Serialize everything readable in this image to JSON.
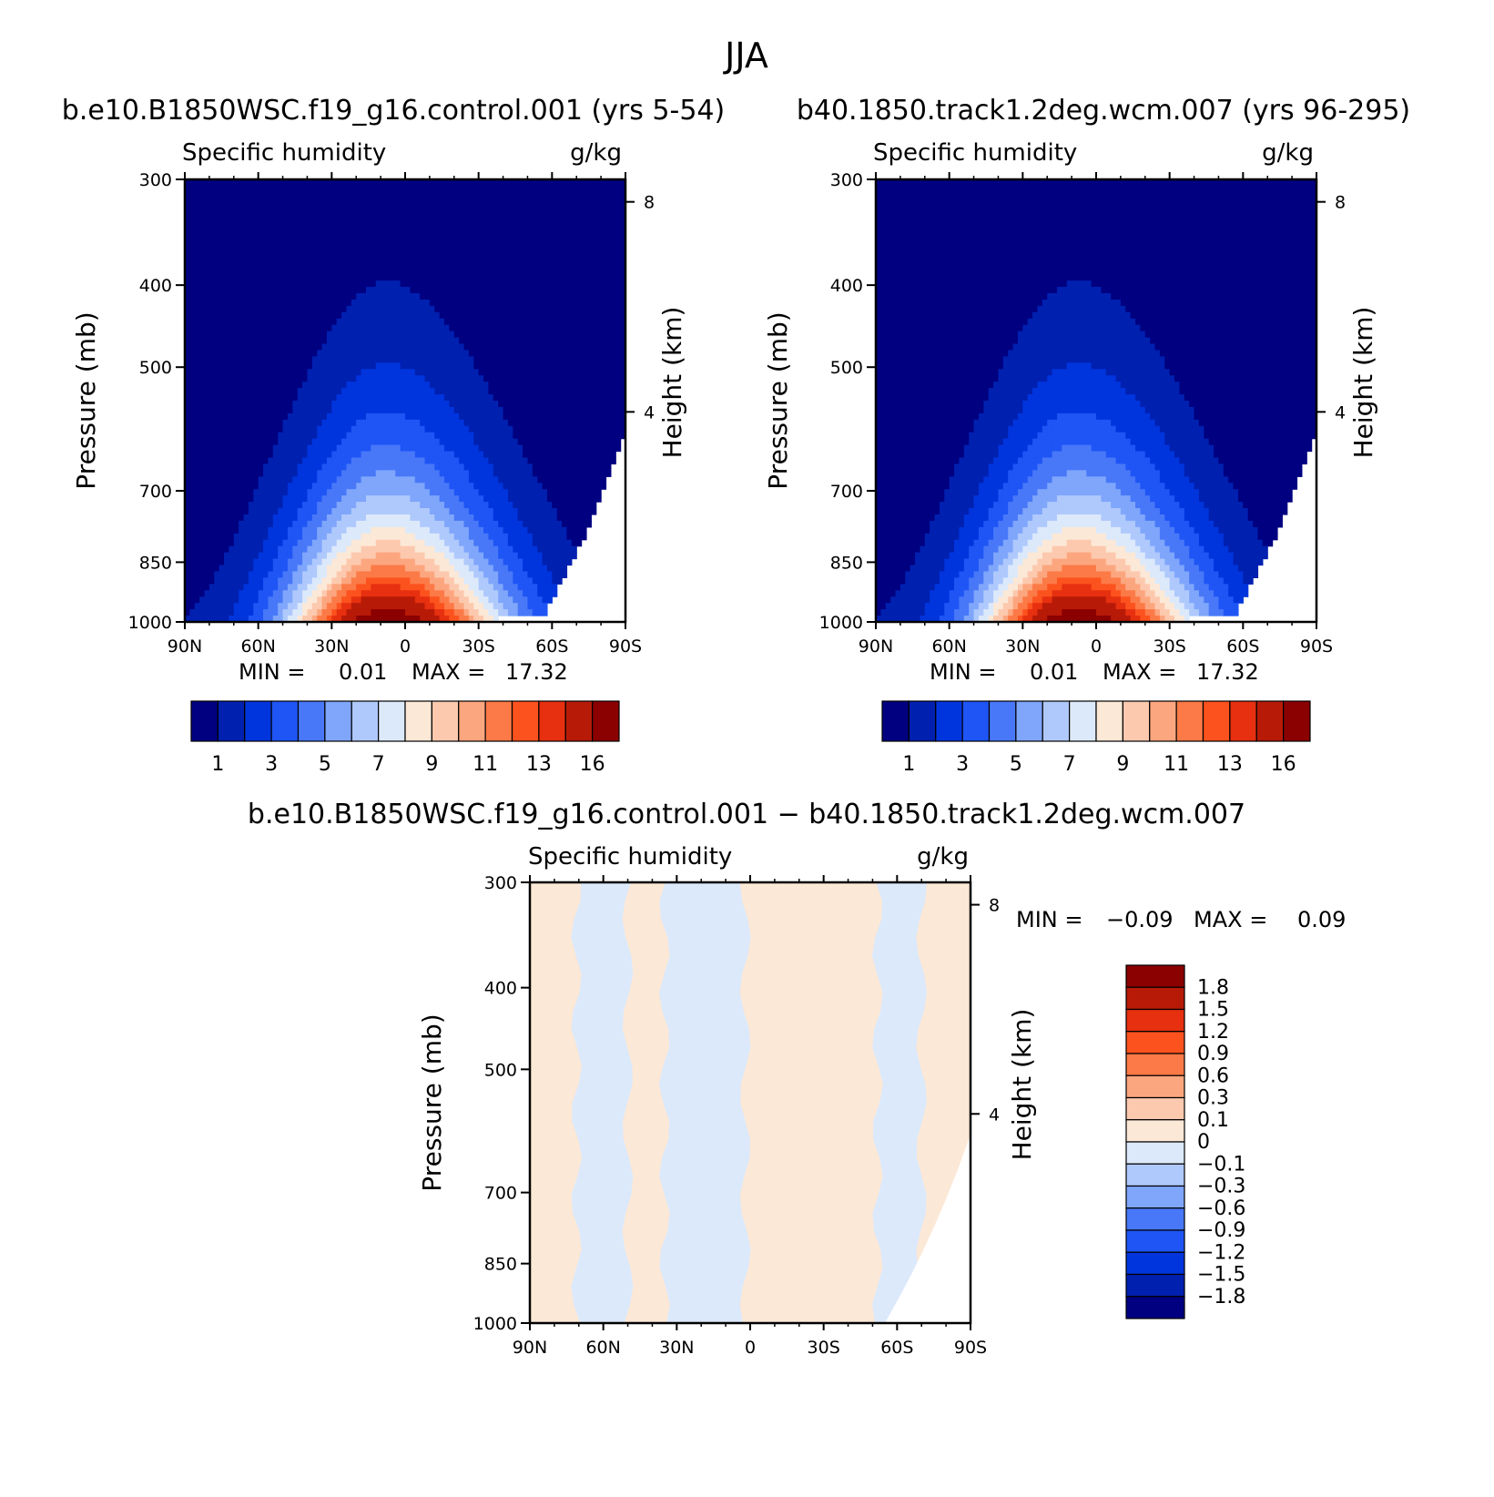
{
  "figure_title": "JJA",
  "difference_title": "b.e10.B1850WSC.f19_g16.control.001 − b40.1850.track1.2deg.wcm.007",
  "colors": {
    "abs_scale": [
      "#000080",
      "#0020B0",
      "#0035DD",
      "#1F55F5",
      "#4878F8",
      "#7FA6FB",
      "#AFC9FC",
      "#DCE9FB",
      "#FCE8D6",
      "#FCC9AE",
      "#FCA67F",
      "#FC7A47",
      "#FC521E",
      "#E63010",
      "#B81A08",
      "#8B0000"
    ],
    "diff_scale": [
      "#000080",
      "#0020B0",
      "#0035DD",
      "#1F55F5",
      "#4878F8",
      "#7FA6FB",
      "#AFC9FC",
      "#DCE9FB",
      "#FCE8D6",
      "#FCC9AE",
      "#FCA67F",
      "#FC7A47",
      "#FC521E",
      "#E63010",
      "#B81A08",
      "#8B0000"
    ]
  },
  "chart_data": [
    {
      "type": "contour",
      "title": "b.e10.B1850WSC.f19_g16.control.001 (yrs 5-54)",
      "left_label": "Specific humidity",
      "right_label": "g/kg",
      "ylabel": "Pressure (mb)",
      "ylabel_right": "Height (km)",
      "x_ticks": [
        "90N",
        "60N",
        "30N",
        "0",
        "30S",
        "60S",
        "90S"
      ],
      "x_range": [
        90,
        -90
      ],
      "y_ticks": [
        300,
        400,
        500,
        700,
        850,
        1000
      ],
      "y_range": [
        300,
        1000
      ],
      "y_right_ticks": [
        8,
        4
      ],
      "min_text": "MIN =",
      "min_value": "0.01",
      "max_text": "MAX =",
      "max_value": "17.32",
      "colorbar_labels": [
        "1",
        "3",
        "5",
        "7",
        "9",
        "11",
        "13",
        "16"
      ]
    },
    {
      "type": "contour",
      "title": "b40.1850.track1.2deg.wcm.007 (yrs 96-295)",
      "left_label": "Specific humidity",
      "right_label": "g/kg",
      "ylabel": "Pressure (mb)",
      "ylabel_right": "Height (km)",
      "x_ticks": [
        "90N",
        "60N",
        "30N",
        "0",
        "30S",
        "60S",
        "90S"
      ],
      "x_range": [
        90,
        -90
      ],
      "y_ticks": [
        300,
        400,
        500,
        700,
        850,
        1000
      ],
      "y_range": [
        300,
        1000
      ],
      "y_right_ticks": [
        8,
        4
      ],
      "min_text": "MIN =",
      "min_value": "0.01",
      "max_text": "MAX =",
      "max_value": "17.32",
      "colorbar_labels": [
        "1",
        "3",
        "5",
        "7",
        "9",
        "11",
        "13",
        "16"
      ]
    },
    {
      "type": "contour",
      "title": "b.e10.B1850WSC.f19_g16.control.001 − b40.1850.track1.2deg.wcm.007",
      "left_label": "Specific humidity",
      "right_label": "g/kg",
      "ylabel": "Pressure (mb)",
      "ylabel_right": "Height (km)",
      "x_ticks": [
        "90N",
        "60N",
        "30N",
        "0",
        "30S",
        "60S",
        "90S"
      ],
      "x_range": [
        90,
        -90
      ],
      "y_ticks": [
        300,
        400,
        500,
        700,
        850,
        1000
      ],
      "y_range": [
        300,
        1000
      ],
      "y_right_ticks": [
        8,
        4
      ],
      "min_text": "MIN =",
      "min_value": "−0.09",
      "max_text": "MAX =",
      "max_value": "0.09",
      "colorbar_labels": [
        "1.8",
        "1.5",
        "1.2",
        "0.9",
        "0.6",
        "0.3",
        "0.1",
        "0",
        "−0.1",
        "−0.3",
        "−0.6",
        "−0.9",
        "−1.2",
        "−1.5",
        "−1.8"
      ],
      "difference_bands_lat": [
        {
          "from": 90,
          "to": 71,
          "sign": "positive"
        },
        {
          "from": 71,
          "to": 50,
          "sign": "negative"
        },
        {
          "from": 50,
          "to": 35,
          "sign": "positive"
        },
        {
          "from": 35,
          "to": 2,
          "sign": "negative"
        },
        {
          "from": 2,
          "to": -25,
          "sign": "positive"
        },
        {
          "from": -25,
          "to": -52,
          "sign": "positive"
        },
        {
          "from": -52,
          "to": -70,
          "sign": "negative"
        },
        {
          "from": -70,
          "to": -90,
          "sign": "positive"
        }
      ]
    }
  ]
}
